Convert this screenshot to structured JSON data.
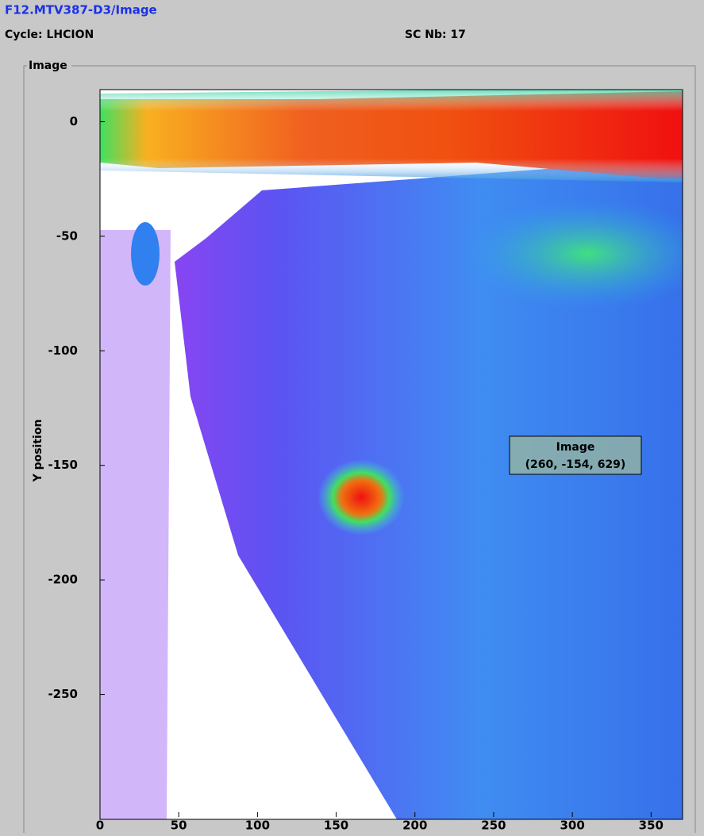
{
  "header": {
    "title": "F12.MTV387-D3/Image",
    "cycle": "Cycle: LHCION",
    "sc": "SC Nb: 17"
  },
  "panel": {
    "label": "Image"
  },
  "plot": {
    "y_label": "Y position",
    "xlim": [
      0,
      370
    ],
    "ylim": [
      -300,
      14
    ],
    "xticks": [
      0,
      50,
      100,
      150,
      200,
      250,
      300,
      350
    ],
    "yticks": [
      0,
      -50,
      -100,
      -150,
      -200,
      -250
    ]
  },
  "tooltip": {
    "title": "Image",
    "value": "(260, -154, 629)"
  }
}
